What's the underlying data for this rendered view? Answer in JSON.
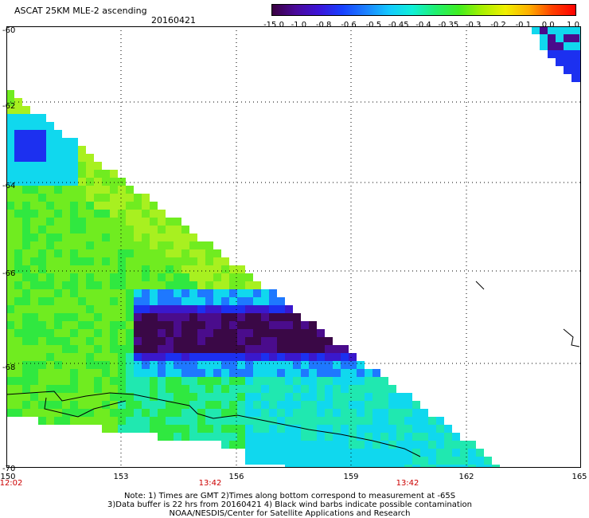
{
  "header": {
    "title": "ASCAT 25KM MLE-2 ascending",
    "date": "20160421"
  },
  "colorbar": {
    "labels": [
      "-15.0",
      "-1.0",
      "-0.8",
      "-0.6",
      "-0.5",
      "-0.45",
      "-0.4",
      "-0.35",
      "-0.3",
      "-0.2",
      "-0.1",
      "0.0",
      "1.0"
    ],
    "colors": [
      "#3a0040",
      "#4a0a9a",
      "#3c14d8",
      "#1840ff",
      "#1c80ff",
      "#14c8ff",
      "#10f0d8",
      "#20f070",
      "#40ee20",
      "#a8f000",
      "#f0f000",
      "#ffb000",
      "#ff4000",
      "#ff0000"
    ]
  },
  "axes": {
    "lat_labels": [
      "-60",
      "-62",
      "-64",
      "-66",
      "-68",
      "-70"
    ],
    "lon_labels": [
      "150",
      "153",
      "156",
      "159",
      "162",
      "165"
    ],
    "time_labels": [
      "12:02",
      "13:42",
      "13:42"
    ]
  },
  "notes": {
    "line1": "Note: 1) Times are GMT 2)Times along bottom correspond to measurement at -65S",
    "line2": "3)Data buffer is 22 hrs from 20160421 4) Black wind barbs indicate possible contamination",
    "line3": "NOAA/NESDIS/Center for Satellite Applications and Research"
  }
}
